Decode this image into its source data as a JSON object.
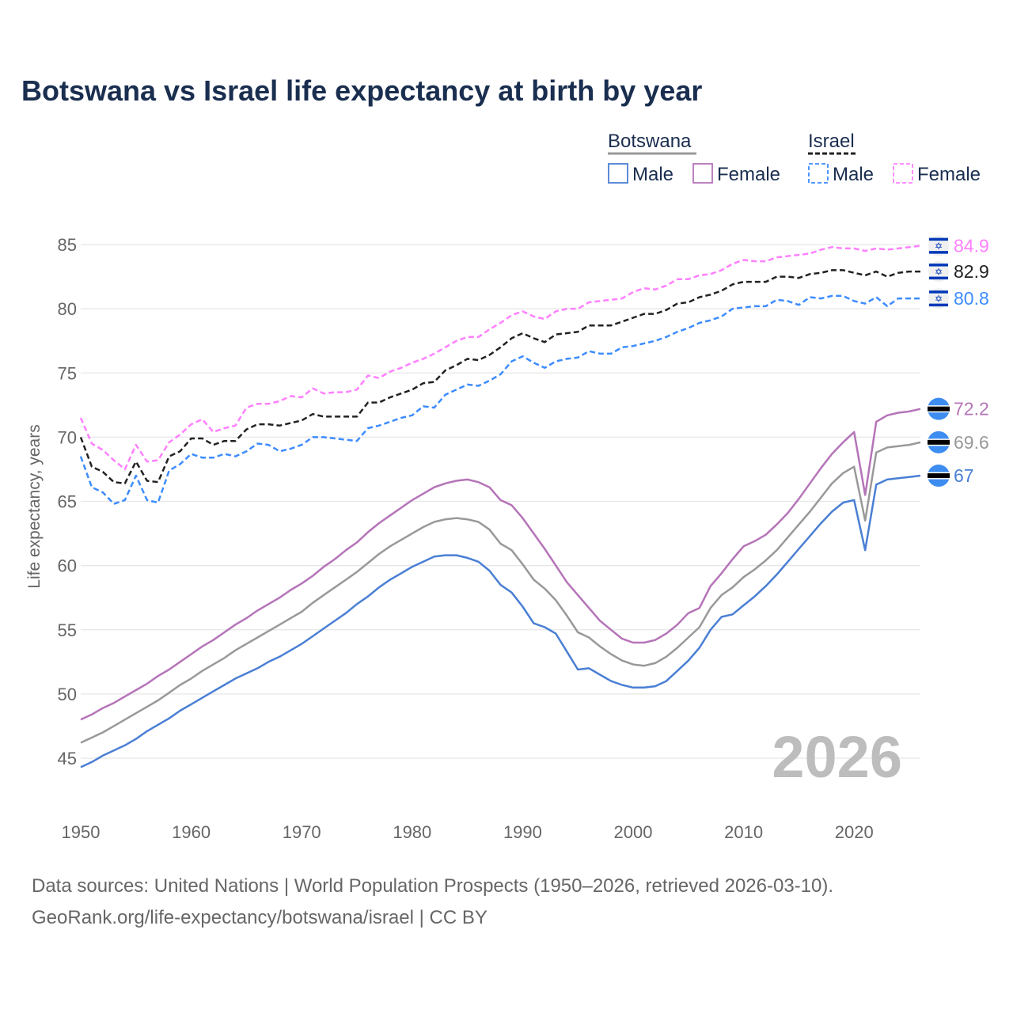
{
  "chart_data": {
    "type": "line",
    "title": "Botswana vs Israel life expectancy at birth by year",
    "xlabel": "",
    "ylabel": "Life expectancy, years",
    "xlim": [
      1950,
      2026
    ],
    "ylim": [
      43,
      86
    ],
    "x_ticks": [
      1950,
      1960,
      1970,
      1980,
      1990,
      2000,
      2010,
      2020
    ],
    "y_ticks": [
      45,
      50,
      55,
      60,
      65,
      70,
      75,
      80,
      85
    ],
    "grid": true,
    "x_start": 1950,
    "watermark_year": "2026",
    "legend": {
      "placement": "top-right",
      "groups": [
        {
          "name": "Botswana",
          "entries": [
            "Male",
            "Female"
          ]
        },
        {
          "name": "Israel",
          "entries": [
            "Male",
            "Female"
          ]
        }
      ]
    },
    "series": [
      {
        "name": "Israel Female",
        "country": "Israel",
        "dashed": true,
        "color": "#ff80ff",
        "end_label": "84.9",
        "values": [
          71.5,
          69.5,
          69.0,
          68.2,
          67.5,
          69.4,
          68.1,
          68.2,
          69.6,
          70.2,
          71.0,
          71.4,
          70.4,
          70.7,
          70.9,
          72.3,
          72.6,
          72.6,
          72.8,
          73.2,
          73.1,
          73.8,
          73.4,
          73.5,
          73.5,
          73.7,
          74.8,
          74.6,
          75.1,
          75.4,
          75.8,
          76.1,
          76.5,
          77.0,
          77.5,
          77.8,
          77.8,
          78.4,
          78.9,
          79.5,
          79.8,
          79.4,
          79.2,
          79.8,
          80.0,
          80.0,
          80.5,
          80.6,
          80.7,
          80.8,
          81.3,
          81.6,
          81.5,
          81.8,
          82.3,
          82.3,
          82.6,
          82.7,
          83.0,
          83.5,
          83.8,
          83.7,
          83.7,
          84.0,
          84.1,
          84.2,
          84.3,
          84.6,
          84.8,
          84.7,
          84.7,
          84.5,
          84.7,
          84.6,
          84.7,
          84.8,
          84.9
        ]
      },
      {
        "name": "Israel Total",
        "country": "Israel",
        "dashed": true,
        "color": "#222222",
        "end_label": "82.9",
        "values": [
          70.0,
          67.7,
          67.3,
          66.5,
          66.4,
          68.1,
          66.6,
          66.5,
          68.5,
          68.9,
          69.9,
          69.9,
          69.4,
          69.7,
          69.7,
          70.6,
          71.0,
          71.0,
          70.9,
          71.1,
          71.3,
          71.8,
          71.6,
          71.6,
          71.6,
          71.6,
          72.7,
          72.7,
          73.1,
          73.4,
          73.7,
          74.2,
          74.3,
          75.2,
          75.6,
          76.1,
          76.0,
          76.4,
          77.0,
          77.7,
          78.1,
          77.7,
          77.4,
          78.0,
          78.1,
          78.2,
          78.7,
          78.7,
          78.7,
          79.0,
          79.3,
          79.6,
          79.6,
          79.9,
          80.4,
          80.5,
          80.9,
          81.1,
          81.4,
          81.9,
          82.1,
          82.1,
          82.1,
          82.5,
          82.5,
          82.4,
          82.7,
          82.8,
          83.0,
          83.0,
          82.8,
          82.6,
          82.9,
          82.5,
          82.8,
          82.9,
          82.9
        ]
      },
      {
        "name": "Israel Male",
        "country": "Israel",
        "dashed": true,
        "color": "#3d8cff",
        "end_label": "80.8",
        "values": [
          68.5,
          66.1,
          65.7,
          64.8,
          65.1,
          67.0,
          65.1,
          64.9,
          67.4,
          67.9,
          68.7,
          68.4,
          68.4,
          68.7,
          68.5,
          68.9,
          69.5,
          69.4,
          68.9,
          69.1,
          69.4,
          70.0,
          70.0,
          69.9,
          69.8,
          69.7,
          70.7,
          70.9,
          71.2,
          71.5,
          71.7,
          72.4,
          72.3,
          73.3,
          73.7,
          74.1,
          74.0,
          74.4,
          74.9,
          75.9,
          76.3,
          75.8,
          75.4,
          75.9,
          76.1,
          76.2,
          76.7,
          76.5,
          76.5,
          77.0,
          77.1,
          77.3,
          77.5,
          77.8,
          78.2,
          78.5,
          78.9,
          79.1,
          79.4,
          80.0,
          80.1,
          80.2,
          80.2,
          80.7,
          80.6,
          80.3,
          80.9,
          80.8,
          81.0,
          81.0,
          80.6,
          80.4,
          80.9,
          80.2,
          80.8,
          80.8,
          80.8
        ]
      },
      {
        "name": "Botswana Female",
        "country": "Botswana",
        "dashed": false,
        "color": "#b574b8",
        "end_label": "72.2",
        "values": [
          48.0,
          48.4,
          48.9,
          49.3,
          49.8,
          50.3,
          50.8,
          51.4,
          51.9,
          52.5,
          53.1,
          53.7,
          54.2,
          54.8,
          55.4,
          55.9,
          56.5,
          57.0,
          57.5,
          58.1,
          58.6,
          59.2,
          59.9,
          60.5,
          61.2,
          61.8,
          62.6,
          63.3,
          63.9,
          64.5,
          65.1,
          65.6,
          66.1,
          66.4,
          66.6,
          66.7,
          66.5,
          66.1,
          65.1,
          64.7,
          63.7,
          62.5,
          61.3,
          60.0,
          58.7,
          57.7,
          56.7,
          55.7,
          55.0,
          54.3,
          54.0,
          54.0,
          54.2,
          54.7,
          55.4,
          56.3,
          56.7,
          58.4,
          59.4,
          60.5,
          61.5,
          61.9,
          62.4,
          63.2,
          64.1,
          65.2,
          66.4,
          67.6,
          68.7,
          69.6,
          70.4,
          65.5,
          71.2,
          71.7,
          71.9,
          72.0,
          72.2
        ]
      },
      {
        "name": "Botswana Total",
        "country": "Botswana",
        "dashed": false,
        "color": "#999999",
        "end_label": "69.6",
        "values": [
          46.2,
          46.6,
          47.0,
          47.5,
          48.0,
          48.5,
          49.0,
          49.5,
          50.1,
          50.7,
          51.2,
          51.8,
          52.3,
          52.8,
          53.4,
          53.9,
          54.4,
          54.9,
          55.4,
          55.9,
          56.4,
          57.1,
          57.7,
          58.3,
          58.9,
          59.5,
          60.2,
          60.9,
          61.5,
          62.0,
          62.5,
          63.0,
          63.4,
          63.6,
          63.7,
          63.6,
          63.4,
          62.8,
          61.7,
          61.2,
          60.1,
          58.9,
          58.2,
          57.3,
          56.1,
          54.8,
          54.4,
          53.7,
          53.1,
          52.6,
          52.3,
          52.2,
          52.4,
          52.9,
          53.6,
          54.4,
          55.2,
          56.7,
          57.7,
          58.3,
          59.1,
          59.7,
          60.4,
          61.2,
          62.2,
          63.2,
          64.2,
          65.3,
          66.4,
          67.2,
          67.7,
          63.5,
          68.8,
          69.2,
          69.3,
          69.4,
          69.6
        ]
      },
      {
        "name": "Botswana Male",
        "country": "Botswana",
        "dashed": false,
        "color": "#4a7fd4",
        "end_label": "67",
        "values": [
          44.3,
          44.7,
          45.2,
          45.6,
          46.0,
          46.5,
          47.1,
          47.6,
          48.1,
          48.7,
          49.2,
          49.7,
          50.2,
          50.7,
          51.2,
          51.6,
          52.0,
          52.5,
          52.9,
          53.4,
          53.9,
          54.5,
          55.1,
          55.7,
          56.3,
          57.0,
          57.6,
          58.3,
          58.9,
          59.4,
          59.9,
          60.3,
          60.7,
          60.8,
          60.8,
          60.6,
          60.3,
          59.6,
          58.5,
          57.9,
          56.8,
          55.5,
          55.2,
          54.7,
          53.3,
          51.9,
          52.0,
          51.5,
          51.0,
          50.7,
          50.5,
          50.5,
          50.6,
          51.0,
          51.8,
          52.6,
          53.6,
          55.0,
          56.0,
          56.2,
          56.9,
          57.6,
          58.4,
          59.3,
          60.3,
          61.3,
          62.3,
          63.3,
          64.2,
          64.9,
          65.1,
          61.2,
          66.3,
          66.7,
          66.8,
          66.9,
          67.0
        ]
      }
    ]
  },
  "footer": {
    "line1": "Data sources: United Nations | World Population Prospects (1950–2026, retrieved 2026-03-10).",
    "line2": "GeoRank.org/life-expectancy/botswana/israel | CC BY"
  }
}
